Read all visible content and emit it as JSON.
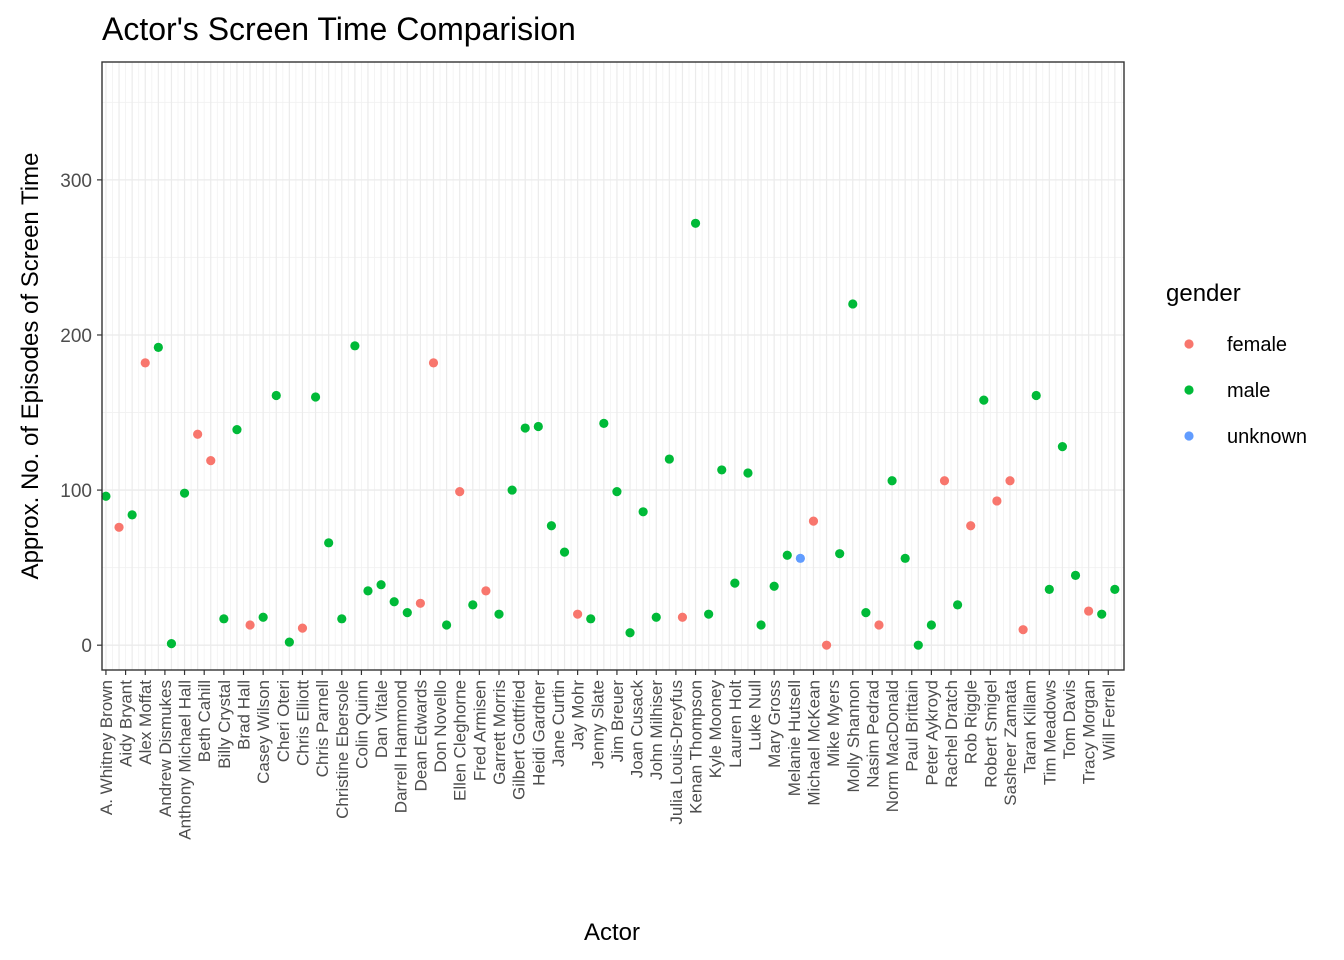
{
  "chart_data": {
    "type": "scatter",
    "title": "Actor's Screen Time Comparision",
    "xlabel": "Actor",
    "ylabel": "Approx. No. of Episodes of Screen Time",
    "ylim": [
      -16,
      376
    ],
    "yticks": [
      0,
      100,
      200,
      300
    ],
    "grid": true,
    "legend": {
      "title": "gender",
      "position": "right",
      "entries": [
        {
          "label": "female",
          "color": "#F8766D"
        },
        {
          "label": "male",
          "color": "#00BA38"
        },
        {
          "label": "unknown",
          "color": "#619CFF"
        }
      ]
    },
    "actors": [
      "A. Whitney Brown",
      "Aidy Bryant",
      "Alex Moffat",
      "Andrew Dismukes",
      "Anthony Michael Hall",
      "Beth Cahill",
      "Billy Crystal",
      "Brad Hall",
      "Casey Wilson",
      "Cheri Oteri",
      "Chris Elliott",
      "Chris Parnell",
      "Christine Ebersole",
      "Colin Quinn",
      "Dan Vitale",
      "Darrell Hammond",
      "Dean Edwards",
      "Don Novello",
      "Ellen Cleghorne",
      "Fred Armisen",
      "Garrett Morris",
      "Gilbert Gottfried",
      "Heidi Gardner",
      "Jane Curtin",
      "Jay Mohr",
      "Jenny Slate",
      "Jim Breuer",
      "Joan Cusack",
      "John Milhiser",
      "Julia Louis-Dreyfus",
      "Kenan Thompson",
      "Kyle Mooney",
      "Lauren Holt",
      "Luke Null",
      "Mary Gross",
      "Melanie Hutsell",
      "Michael McKean",
      "Mike Myers",
      "Molly Shannon",
      "Nasim Pedrad",
      "Norm MacDonald",
      "Paul Brittain",
      "Peter Aykroyd",
      "Rachel Dratch",
      "Rob Riggle",
      "Robert Smigel",
      "Sasheer Zamata",
      "Taran Killam",
      "Tim Meadows",
      "Tom Davis",
      "Tracy Morgan",
      "Will Ferrell"
    ],
    "x_positions": [
      0,
      0.5,
      1,
      1.5,
      2,
      2.5,
      3,
      3.5,
      4,
      4.5,
      5,
      5.5,
      6,
      6.5,
      7,
      7.5,
      8,
      8.5,
      9,
      9.5,
      10,
      10.5,
      11,
      11.5,
      12,
      12.5,
      13,
      13.5,
      14,
      14.5,
      15,
      15.5,
      16,
      16.5,
      17,
      17.5,
      18,
      18.5,
      19,
      19.5,
      20,
      20.5,
      21,
      21.5,
      22,
      22.5,
      23,
      23.5,
      24,
      24.5,
      25,
      25.5,
      26,
      26.5,
      27,
      27.5,
      28,
      28.5,
      29,
      29.5,
      30,
      30.5,
      31,
      31.5,
      32,
      32.5,
      33,
      33.5,
      34,
      34.5,
      35,
      35.5,
      36,
      36.5,
      37,
      37.5,
      38,
      38.5,
      39,
      39.5,
      40,
      40.5,
      41,
      41.5,
      42,
      42.5,
      43,
      43.5,
      44,
      44.5,
      45,
      45.5,
      46,
      46.5,
      47,
      47.5,
      48,
      48.5,
      49,
      49.5,
      50,
      50.5,
      51,
      51.5,
      52,
      52.5,
      53,
      53.5,
      54,
      54.5,
      55,
      55.5,
      56,
      56.5,
      57,
      57.5,
      58,
      58.5,
      59,
      59.5,
      60,
      60.5,
      61,
      61.5,
      62,
      62.5,
      63,
      63.5,
      64,
      64.5,
      65,
      65.5,
      66,
      66.5,
      67,
      67.5,
      68,
      68.5,
      69,
      69.5,
      70,
      70.5,
      71,
      71.5,
      72,
      72.5,
      73,
      73.5,
      74,
      74.5,
      75,
      75.5,
      76,
      76.5,
      77,
      77.5
    ],
    "points": [
      {
        "x": 0,
        "y": 96,
        "gender": "male"
      },
      {
        "x": 1,
        "y": 76,
        "gender": "female"
      },
      {
        "x": 2,
        "y": 84,
        "gender": "male"
      },
      {
        "x": 3,
        "y": 182,
        "gender": "female"
      },
      {
        "x": 4,
        "y": 192,
        "gender": "male"
      },
      {
        "x": 5,
        "y": 1,
        "gender": "male"
      },
      {
        "x": 6,
        "y": 98,
        "gender": "male"
      },
      {
        "x": 7,
        "y": 136,
        "gender": "female"
      },
      {
        "x": 8,
        "y": 119,
        "gender": "female"
      },
      {
        "x": 9,
        "y": 17,
        "gender": "male"
      },
      {
        "x": 10,
        "y": 139,
        "gender": "male"
      },
      {
        "x": 11,
        "y": 13,
        "gender": "female"
      },
      {
        "x": 12,
        "y": 18,
        "gender": "male"
      },
      {
        "x": 13,
        "y": 161,
        "gender": "male"
      },
      {
        "x": 14,
        "y": 2,
        "gender": "male"
      },
      {
        "x": 15,
        "y": 11,
        "gender": "female"
      },
      {
        "x": 16,
        "y": 160,
        "gender": "male"
      },
      {
        "x": 17,
        "y": 66,
        "gender": "male"
      },
      {
        "x": 18,
        "y": 17,
        "gender": "male"
      },
      {
        "x": 19,
        "y": 193,
        "gender": "male"
      },
      {
        "x": 20,
        "y": 35,
        "gender": "male"
      },
      {
        "x": 21,
        "y": 39,
        "gender": "male"
      },
      {
        "x": 22,
        "y": 28,
        "gender": "male"
      },
      {
        "x": 23,
        "y": 21,
        "gender": "male"
      },
      {
        "x": 24,
        "y": 27,
        "gender": "female"
      },
      {
        "x": 25,
        "y": 182,
        "gender": "female"
      },
      {
        "x": 26,
        "y": 13,
        "gender": "male"
      },
      {
        "x": 27,
        "y": 99,
        "gender": "female"
      },
      {
        "x": 28,
        "y": 26,
        "gender": "male"
      },
      {
        "x": 29,
        "y": 35,
        "gender": "female"
      },
      {
        "x": 30,
        "y": 20,
        "gender": "male"
      },
      {
        "x": 31,
        "y": 100,
        "gender": "male"
      },
      {
        "x": 32,
        "y": 140,
        "gender": "male"
      },
      {
        "x": 33,
        "y": 141,
        "gender": "male"
      },
      {
        "x": 34,
        "y": 77,
        "gender": "male"
      },
      {
        "x": 35,
        "y": 60,
        "gender": "male"
      },
      {
        "x": 36,
        "y": 20,
        "gender": "female"
      },
      {
        "x": 37,
        "y": 17,
        "gender": "male"
      },
      {
        "x": 38,
        "y": 143,
        "gender": "male"
      },
      {
        "x": 39,
        "y": 99,
        "gender": "male"
      },
      {
        "x": 40,
        "y": 8,
        "gender": "male"
      },
      {
        "x": 41,
        "y": 86,
        "gender": "male"
      },
      {
        "x": 42,
        "y": 18,
        "gender": "male"
      },
      {
        "x": 43,
        "y": 120,
        "gender": "male"
      },
      {
        "x": 44,
        "y": 18,
        "gender": "female"
      },
      {
        "x": 45,
        "y": 272,
        "gender": "male"
      },
      {
        "x": 46,
        "y": 20,
        "gender": "male"
      },
      {
        "x": 47,
        "y": 113,
        "gender": "male"
      },
      {
        "x": 48,
        "y": 40,
        "gender": "male"
      },
      {
        "x": 49,
        "y": 111,
        "gender": "male"
      },
      {
        "x": 50,
        "y": 13,
        "gender": "male"
      },
      {
        "x": 51,
        "y": 38,
        "gender": "male"
      },
      {
        "x": 52,
        "y": 58,
        "gender": "male"
      },
      {
        "x": 53,
        "y": 56,
        "gender": "unknown"
      },
      {
        "x": 54,
        "y": 80,
        "gender": "female"
      },
      {
        "x": 55,
        "y": 0,
        "gender": "female"
      },
      {
        "x": 56,
        "y": 59,
        "gender": "male"
      },
      {
        "x": 57,
        "y": 220,
        "gender": "male"
      },
      {
        "x": 58,
        "y": 21,
        "gender": "male"
      },
      {
        "x": 59,
        "y": 13,
        "gender": "female"
      },
      {
        "x": 60,
        "y": 106,
        "gender": "male"
      },
      {
        "x": 61,
        "y": 56,
        "gender": "male"
      },
      {
        "x": 62,
        "y": 0,
        "gender": "male"
      },
      {
        "x": 63,
        "y": 13,
        "gender": "male"
      },
      {
        "x": 64,
        "y": 106,
        "gender": "female"
      },
      {
        "x": 65,
        "y": 26,
        "gender": "male"
      },
      {
        "x": 66,
        "y": 77,
        "gender": "female"
      },
      {
        "x": 67,
        "y": 158,
        "gender": "male"
      },
      {
        "x": 68,
        "y": 93,
        "gender": "female"
      },
      {
        "x": 69,
        "y": 106,
        "gender": "female"
      },
      {
        "x": 70,
        "y": 10,
        "gender": "female"
      },
      {
        "x": 71,
        "y": 161,
        "gender": "male"
      },
      {
        "x": 72,
        "y": 36,
        "gender": "male"
      },
      {
        "x": 73,
        "y": 128,
        "gender": "male"
      },
      {
        "x": 74,
        "y": 45,
        "gender": "male"
      },
      {
        "x": 75,
        "y": 22,
        "gender": "female"
      },
      {
        "x": 76,
        "y": 20,
        "gender": "male"
      },
      {
        "x": 77,
        "y": 36,
        "gender": "male"
      }
    ]
  }
}
